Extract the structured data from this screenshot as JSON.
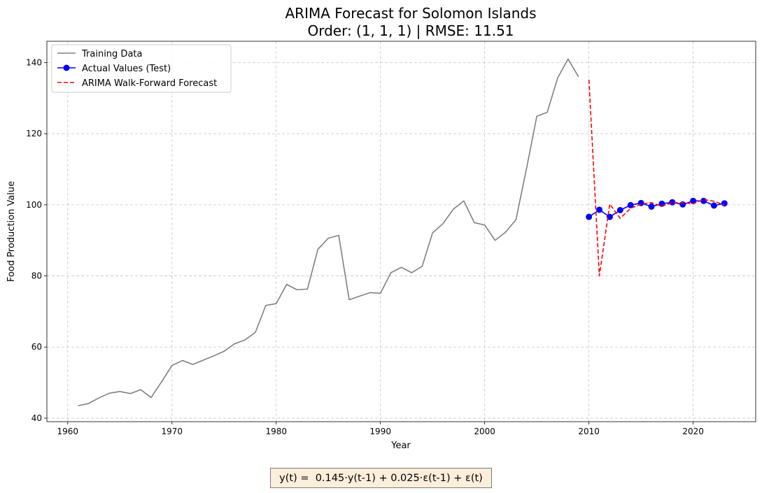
{
  "chart_data": {
    "type": "line",
    "title_line1": "ARIMA Forecast for Solomon Islands",
    "title_line2": "Order: (1, 1, 1) | RMSE: 11.51",
    "xlabel": "Year",
    "ylabel": "Food Production Value",
    "xlim": [
      1958,
      2026
    ],
    "ylim": [
      39,
      146
    ],
    "xticks": [
      1960,
      1970,
      1980,
      1990,
      2000,
      2010,
      2020
    ],
    "yticks": [
      40,
      60,
      80,
      100,
      120,
      140
    ],
    "grid": true,
    "legend_position": "upper-left",
    "series": [
      {
        "name": "Training Data",
        "color": "#808080",
        "style": "solid",
        "x": [
          1961,
          1962,
          1963,
          1964,
          1965,
          1966,
          1967,
          1968,
          1969,
          1970,
          1971,
          1972,
          1973,
          1974,
          1975,
          1976,
          1977,
          1978,
          1979,
          1980,
          1981,
          1982,
          1983,
          1984,
          1985,
          1986,
          1987,
          1988,
          1989,
          1990,
          1991,
          1992,
          1993,
          1994,
          1995,
          1996,
          1997,
          1998,
          1999,
          2000,
          2001,
          2002,
          2003,
          2004,
          2005,
          2006,
          2007,
          2008,
          2009
        ],
        "values": [
          43.5,
          44.1,
          45.7,
          47.0,
          47.5,
          46.9,
          48.0,
          45.8,
          50.2,
          54.8,
          56.2,
          55.1,
          56.3,
          57.5,
          58.8,
          60.9,
          62.0,
          64.1,
          71.7,
          72.2,
          77.6,
          76.1,
          76.3,
          87.5,
          90.6,
          91.4,
          73.3,
          74.3,
          75.3,
          75.1,
          80.9,
          82.4,
          80.9,
          82.7,
          92.1,
          94.7,
          98.8,
          101.1,
          95.0,
          94.3,
          90.0,
          92.3,
          95.8,
          110.0,
          124.9,
          126.0,
          135.7,
          141.0,
          136.0
        ]
      },
      {
        "name": "Actual Values (Test)",
        "color": "#0000ff",
        "style": "solid-markers",
        "x": [
          2010,
          2011,
          2012,
          2013,
          2014,
          2015,
          2016,
          2017,
          2018,
          2019,
          2020,
          2021,
          2022,
          2023
        ],
        "values": [
          96.6,
          98.6,
          96.6,
          98.5,
          99.9,
          100.5,
          99.5,
          100.3,
          100.7,
          100.1,
          101.1,
          101.1,
          99.8,
          100.4
        ]
      },
      {
        "name": "ARIMA Walk-Forward Forecast",
        "color": "#ff0000",
        "style": "dashed",
        "x": [
          2010,
          2011,
          2012,
          2013,
          2014,
          2015,
          2016,
          2017,
          2018,
          2019,
          2020,
          2021,
          2022,
          2023
        ],
        "values": [
          135.2,
          80.0,
          100.2,
          96.2,
          99.0,
          100.2,
          100.6,
          99.6,
          100.6,
          100.6,
          100.3,
          101.5,
          101.0,
          99.9
        ]
      }
    ]
  },
  "equation": "y(t) =  0.145·y(t-1) + 0.025·ε(t-1) + ε(t)"
}
